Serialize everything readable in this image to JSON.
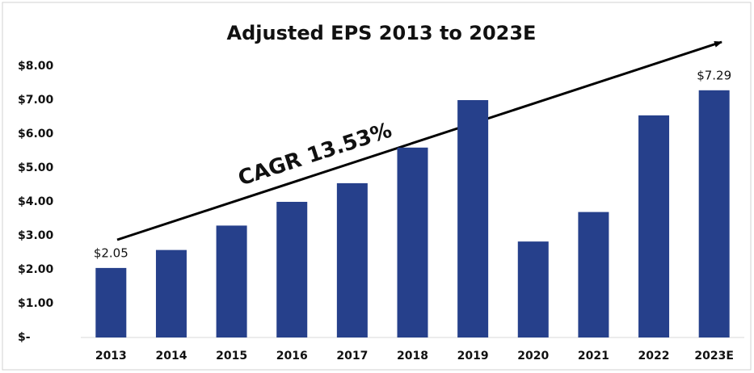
{
  "chart_data": {
    "type": "bar",
    "title": "Adjusted EPS 2013 to 2023E",
    "categories": [
      "2013",
      "2014",
      "2015",
      "2016",
      "2017",
      "2018",
      "2019",
      "2020",
      "2021",
      "2022",
      "2023E"
    ],
    "values": [
      2.05,
      2.58,
      3.3,
      4.0,
      4.55,
      5.6,
      7.0,
      2.83,
      3.7,
      6.55,
      7.29
    ],
    "value_labels": [
      "$2.05",
      null,
      null,
      null,
      null,
      null,
      null,
      null,
      null,
      null,
      "$7.29"
    ],
    "color": "#26408b",
    "ylim": [
      0,
      8
    ],
    "yticks": [
      {
        "value": 0,
        "label": "$-"
      },
      {
        "value": 1,
        "label": "$1.00"
      },
      {
        "value": 2,
        "label": "$2.00"
      },
      {
        "value": 3,
        "label": "$3.00"
      },
      {
        "value": 4,
        "label": "$4.00"
      },
      {
        "value": 5,
        "label": "$5.00"
      },
      {
        "value": 6,
        "label": "$6.00"
      },
      {
        "value": 7,
        "label": "$7.00"
      },
      {
        "value": 8,
        "label": "$8.00"
      }
    ],
    "grid": false,
    "annotations": [
      "CAGR 13.53%"
    ]
  }
}
